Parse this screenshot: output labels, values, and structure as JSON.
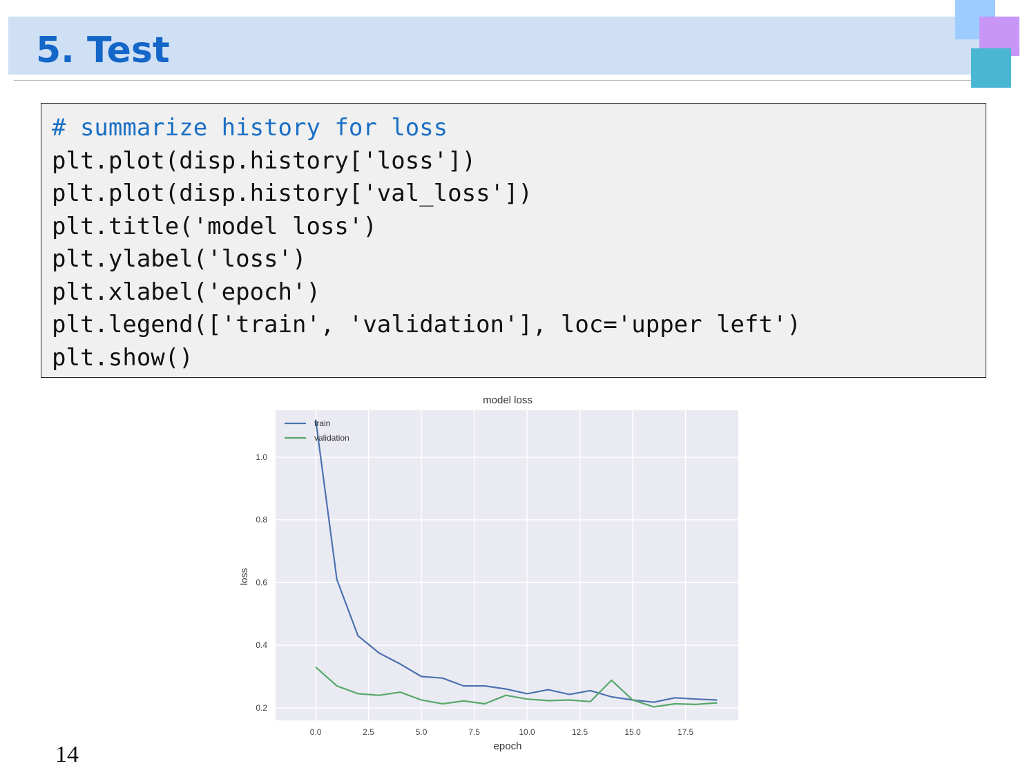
{
  "header": {
    "title": "5. Test"
  },
  "decor": {
    "colors": [
      "#9dccff",
      "#c796f7",
      "#49b6d2"
    ]
  },
  "code": {
    "lines": [
      "# summarize history for loss",
      "plt.plot(disp.history['loss'])",
      "plt.plot(disp.history['val_loss'])",
      "plt.title('model loss')",
      "plt.ylabel('loss')",
      "plt.xlabel('epoch')",
      "plt.legend(['train', 'validation'], loc='upper left')",
      "plt.show()"
    ]
  },
  "chart_data": {
    "type": "line",
    "title": "model loss",
    "xlabel": "epoch",
    "ylabel": "loss",
    "xlim": [
      -1.9,
      20
    ],
    "ylim": [
      0.16,
      1.15
    ],
    "xticks": [
      "0.0",
      "2.5",
      "5.0",
      "7.5",
      "10.0",
      "12.5",
      "15.0",
      "17.5"
    ],
    "yticks": [
      "0.2",
      "0.4",
      "0.6",
      "0.8",
      "1.0"
    ],
    "grid": true,
    "legend_position": "upper left",
    "x": [
      0,
      1,
      2,
      3,
      4,
      5,
      6,
      7,
      8,
      9,
      10,
      11,
      12,
      13,
      14,
      15,
      16,
      17,
      18,
      19
    ],
    "series": [
      {
        "name": "train",
        "color": "#4c72b0",
        "values": [
          1.12,
          0.61,
          0.43,
          0.375,
          0.34,
          0.3,
          0.295,
          0.27,
          0.27,
          0.26,
          0.245,
          0.258,
          0.243,
          0.255,
          0.235,
          0.225,
          0.218,
          0.232,
          0.228,
          0.225
        ]
      },
      {
        "name": "validation",
        "color": "#55a868",
        "values": [
          0.33,
          0.27,
          0.245,
          0.24,
          0.25,
          0.225,
          0.213,
          0.222,
          0.213,
          0.24,
          0.228,
          0.223,
          0.225,
          0.22,
          0.288,
          0.225,
          0.203,
          0.213,
          0.211,
          0.216
        ]
      }
    ]
  },
  "footer": {
    "page_number": "14"
  }
}
